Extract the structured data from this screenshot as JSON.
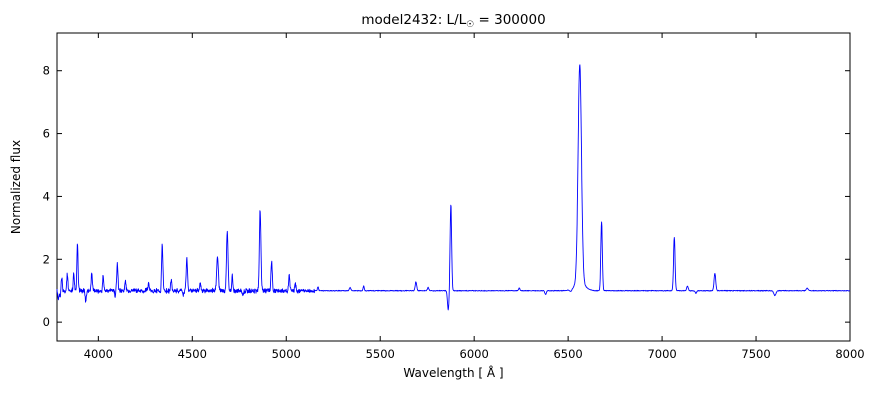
{
  "figure": {
    "title": {
      "prefix": "model2432: L/L",
      "sub": "☉",
      "suffix": " = 300000"
    }
  },
  "chart_data": {
    "type": "line",
    "title": "model2432: L/L☉ = 300000",
    "xlabel": "Wavelength [ Å ]",
    "ylabel": "Normalized flux",
    "xlim": [
      3780,
      8000
    ],
    "ylim": [
      -0.6,
      9.2
    ],
    "xticks": [
      4000,
      4500,
      5000,
      5500,
      6000,
      6500,
      7000,
      7500,
      8000
    ],
    "yticks": [
      0,
      2,
      4,
      6,
      8
    ],
    "grid": false,
    "legend": null,
    "line_color": "#0000ff",
    "continuum": 1.0,
    "emission_peaks_format": [
      "center_angstrom",
      "amplitude_above_continuum",
      "sigma_angstrom"
    ],
    "emission_peaks": [
      [
        3805,
        0.45,
        3
      ],
      [
        3835,
        0.55,
        3
      ],
      [
        3869,
        0.55,
        3
      ],
      [
        3889,
        1.55,
        3
      ],
      [
        3965,
        0.6,
        3
      ],
      [
        4026,
        0.5,
        3
      ],
      [
        4101,
        0.85,
        3.5
      ],
      [
        4144,
        0.3,
        3
      ],
      [
        4267,
        0.25,
        3
      ],
      [
        4340,
        1.45,
        3.5
      ],
      [
        4388,
        0.35,
        3
      ],
      [
        4471,
        1.05,
        3.5
      ],
      [
        4542,
        0.3,
        3
      ],
      [
        4634,
        1.1,
        4.5
      ],
      [
        4686,
        1.9,
        4
      ],
      [
        4713,
        0.5,
        3
      ],
      [
        4861,
        2.6,
        4
      ],
      [
        4922,
        0.9,
        3.5
      ],
      [
        5016,
        0.55,
        3
      ],
      [
        5048,
        0.25,
        3
      ],
      [
        5169,
        0.12,
        3
      ],
      [
        5340,
        0.1,
        4
      ],
      [
        5412,
        0.15,
        3
      ],
      [
        5690,
        0.28,
        4
      ],
      [
        5755,
        0.1,
        4
      ],
      [
        5876,
        2.75,
        4
      ],
      [
        6240,
        0.08,
        4
      ],
      [
        6562,
        6.95,
        9
      ],
      [
        6562,
        0.25,
        28
      ],
      [
        6678,
        2.2,
        4
      ],
      [
        7065,
        1.7,
        4
      ],
      [
        7135,
        0.15,
        4
      ],
      [
        7281,
        0.55,
        4.5
      ],
      [
        7772,
        0.08,
        5
      ]
    ],
    "absorption_features_format": [
      "center_angstrom",
      "depth_below_continuum",
      "sigma_angstrom"
    ],
    "absorption_features": [
      [
        3788,
        0.3,
        3
      ],
      [
        3797,
        0.2,
        3
      ],
      [
        3933,
        0.35,
        3
      ],
      [
        4090,
        0.2,
        3
      ],
      [
        4330,
        0.15,
        3
      ],
      [
        4452,
        0.15,
        3
      ],
      [
        4770,
        0.15,
        3
      ],
      [
        5862,
        0.62,
        4
      ],
      [
        6380,
        0.12,
        4
      ],
      [
        6515,
        0.08,
        6
      ],
      [
        7180,
        0.08,
        4
      ],
      [
        7600,
        0.15,
        6
      ]
    ],
    "noise": {
      "amp_blue": 0.11,
      "amp_red": 0.018,
      "split_angstrom": 5150
    }
  }
}
